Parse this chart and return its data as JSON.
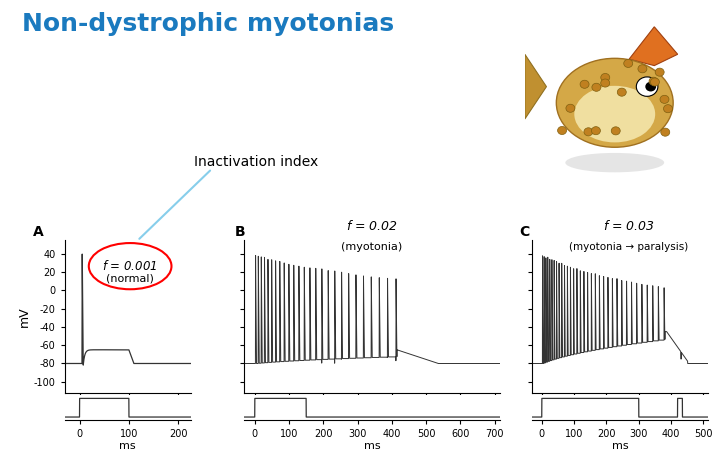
{
  "title": "Non-dystrophic myotonias",
  "title_color": "#1a7abf",
  "title_fontsize": 18,
  "panel_A": {
    "label": "A",
    "f_text": "f = 0.001",
    "f_sub": "(normal)",
    "xlim": [
      -30,
      225
    ],
    "xticks": [
      0,
      100,
      200
    ],
    "ylim": [
      -112,
      55
    ],
    "yticks": [
      -100,
      -80,
      -60,
      -40,
      -20,
      0,
      20,
      40
    ]
  },
  "panel_B": {
    "label": "B",
    "f_text": "f = 0.02",
    "f_sub": "(myotonia)",
    "xlim": [
      -30,
      715
    ],
    "xticks": [
      0,
      100,
      200,
      300,
      400,
      500,
      600,
      700
    ],
    "ylim": [
      -112,
      55
    ],
    "yticks": [
      -100,
      -80,
      -60,
      -40,
      -20,
      0,
      20,
      40
    ]
  },
  "panel_C": {
    "label": "C",
    "f_text": "f = 0.03",
    "f_sub": "(myotonia → paralysis)",
    "xlim": [
      -30,
      515
    ],
    "xticks": [
      0,
      100,
      200,
      300,
      400,
      500
    ],
    "ylim": [
      -112,
      55
    ],
    "yticks": [
      -100,
      -80,
      -60,
      -40,
      -20,
      0,
      20,
      40
    ]
  },
  "ylabel": "mV",
  "xlabel": "ms",
  "inactivation_label": "Inactivation index",
  "circle_color": "red",
  "line_color": "#333333",
  "bg_color": "#ffffff",
  "stim_ylim": [
    -107,
    -92
  ],
  "stim_low": -105,
  "stim_high": -94
}
